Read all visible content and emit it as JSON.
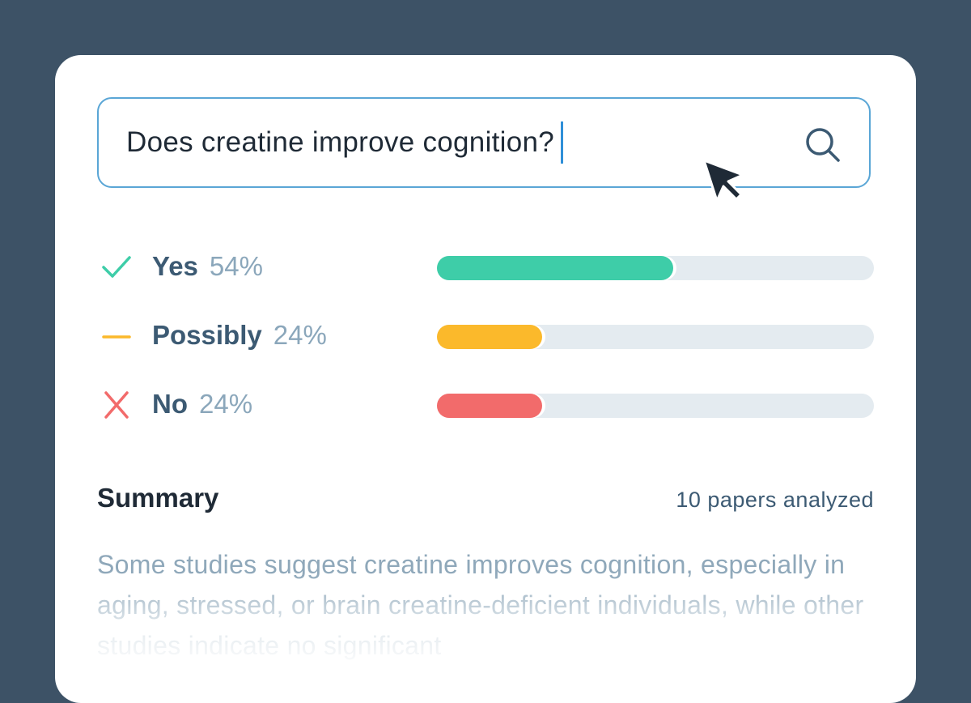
{
  "search": {
    "query": "Does creatine improve cognition?",
    "icon": "search-icon"
  },
  "results": [
    {
      "label": "Yes",
      "percent_text": "54%",
      "value": 54,
      "color": "#3ecda8",
      "icon": "check-icon",
      "icon_color": "#3ecda8"
    },
    {
      "label": "Possibly",
      "percent_text": "24%",
      "value": 24,
      "color": "#fbb92b",
      "icon": "dash-icon",
      "icon_color": "#fbb92b"
    },
    {
      "label": "No",
      "percent_text": "24%",
      "value": 24,
      "color": "#f26b6b",
      "icon": "cross-icon",
      "icon_color": "#f26b6b"
    }
  ],
  "summary": {
    "title": "Summary",
    "papers_count": "10 papers analyzed",
    "text": "Some studies suggest creatine improves cognition, especially in aging, stressed, or brain creatine-deficient individuals, while other studies indicate no significant"
  },
  "colors": {
    "background": "#3d5266",
    "card": "#ffffff",
    "search_border": "#5aa6d6",
    "track": "#e4ebf0"
  }
}
